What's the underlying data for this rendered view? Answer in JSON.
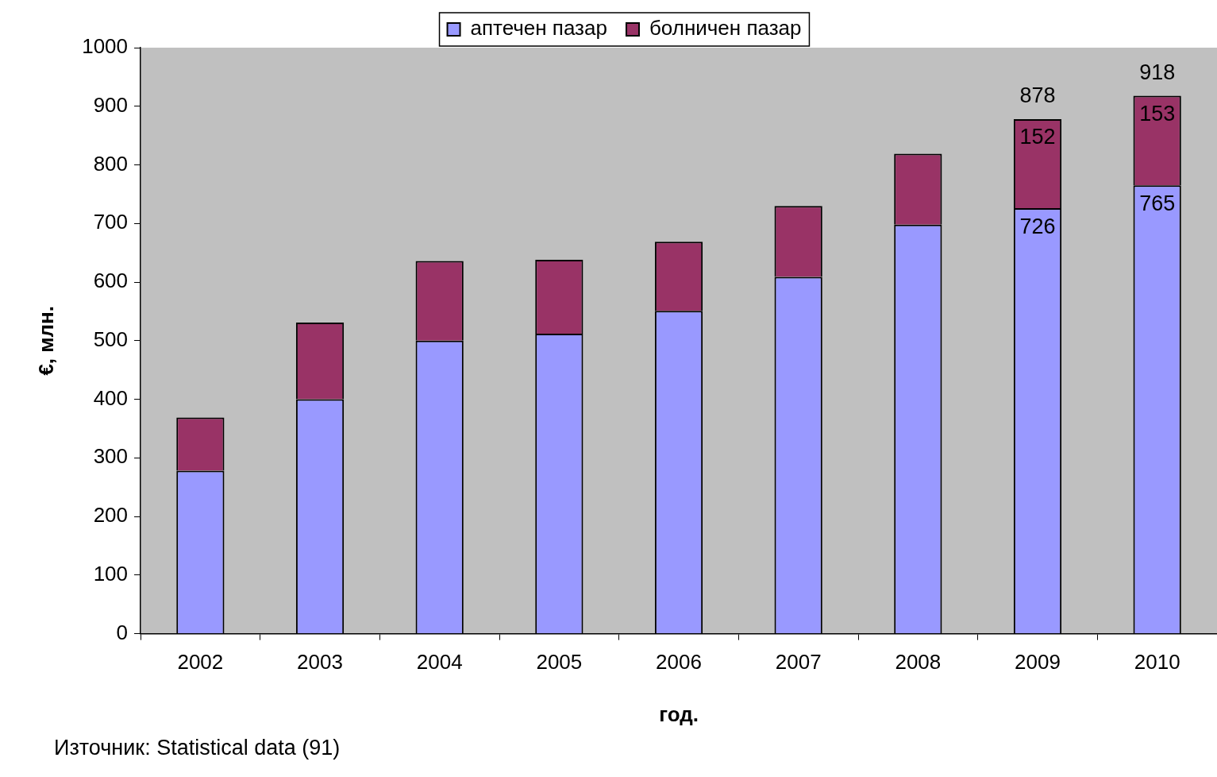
{
  "chart_data": {
    "type": "bar",
    "stacked": true,
    "xlabel": "год.",
    "ylabel": "€, млн.",
    "legend": "top",
    "categories": [
      "2002",
      "2003",
      "2004",
      "2005",
      "2006",
      "2007",
      "2008",
      "2009",
      "2010"
    ],
    "series": [
      {
        "name": "аптечен пазар",
        "color": "#9999ff",
        "values": [
          278,
          400,
          500,
          512,
          551,
          609,
          698,
          726,
          765
        ],
        "value_labels": [
          null,
          null,
          null,
          null,
          null,
          null,
          null,
          "726",
          "765"
        ]
      },
      {
        "name": "болничен пазар",
        "color": "#993366",
        "values": [
          91,
          131,
          136,
          126,
          118,
          121,
          121,
          152,
          153
        ],
        "value_labels": [
          null,
          null,
          null,
          null,
          null,
          null,
          null,
          "152",
          "153"
        ]
      }
    ],
    "totals": [
      null,
      null,
      null,
      null,
      null,
      null,
      null,
      "878",
      "918"
    ],
    "ylim": [
      0,
      1000
    ],
    "yticks": [
      0,
      100,
      200,
      300,
      400,
      500,
      600,
      700,
      800,
      900,
      1000
    ],
    "annotations": [
      "Източник: Statistical data (91)"
    ]
  }
}
